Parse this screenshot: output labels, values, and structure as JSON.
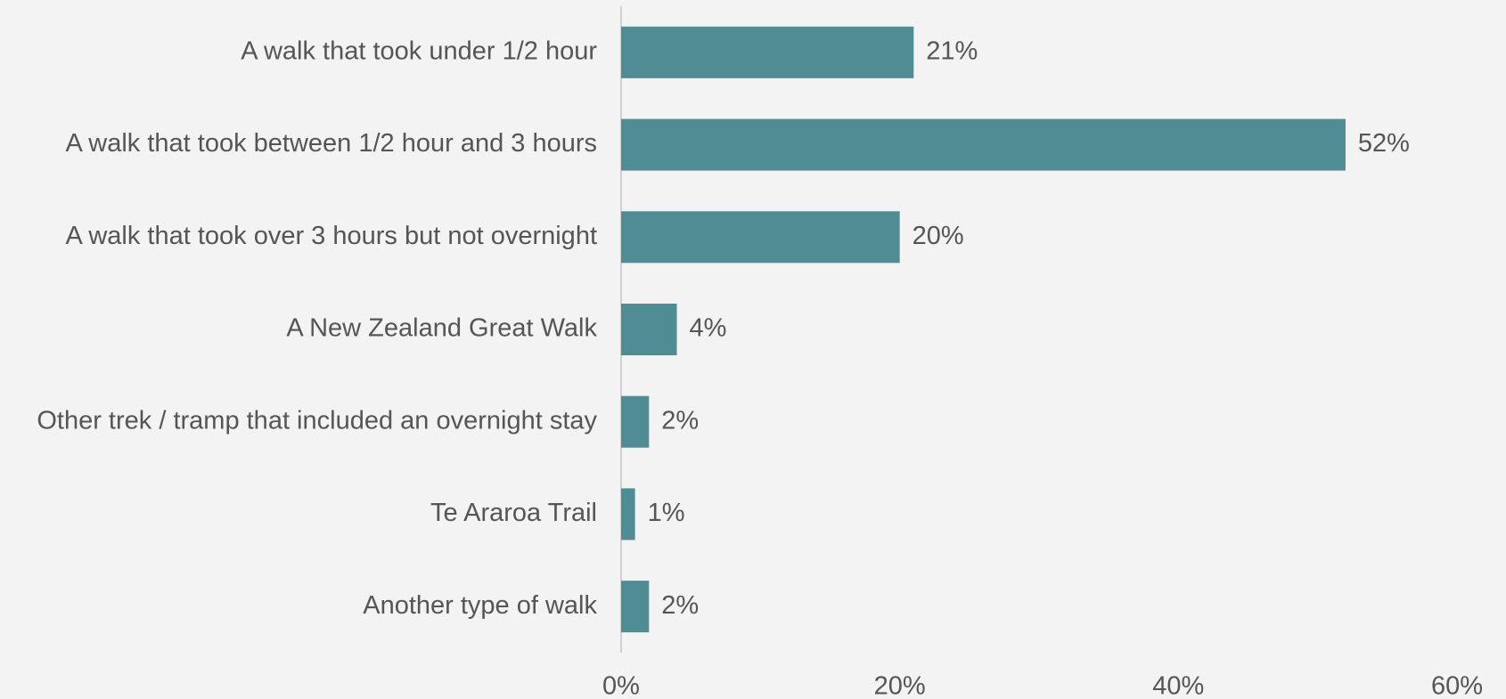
{
  "chart_data": {
    "type": "bar",
    "orientation": "horizontal",
    "categories": [
      "A walk that took under 1/2 hour",
      "A walk that took between 1/2 hour and 3 hours",
      "A walk that took over 3 hours but not overnight",
      "A New Zealand Great Walk",
      "Other trek / tramp that included an overnight stay",
      "Te Araroa Trail",
      "Another type of walk"
    ],
    "values": [
      21,
      52,
      20,
      4,
      2,
      1,
      2
    ],
    "value_labels": [
      "21%",
      "52%",
      "20%",
      "4%",
      "2%",
      "1%",
      "2%"
    ],
    "color": "#4f8c94",
    "xlim": [
      0,
      60
    ],
    "xticks": [
      {
        "value": 0,
        "label": "0%"
      },
      {
        "value": 20,
        "label": "20%"
      },
      {
        "value": 40,
        "label": "40%"
      },
      {
        "value": 60,
        "label": "60%"
      }
    ],
    "grid": false
  }
}
